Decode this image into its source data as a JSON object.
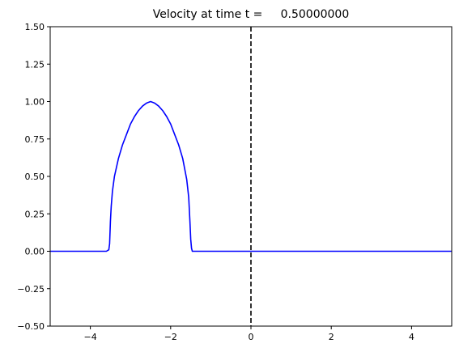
{
  "chart_data": {
    "type": "line",
    "title": "Velocity at time t =     0.50000000",
    "xlabel": "",
    "ylabel": "",
    "xlim": [
      -5,
      5
    ],
    "ylim": [
      -0.5,
      1.5
    ],
    "x_ticks": [
      -4,
      -2,
      0,
      2,
      4
    ],
    "x_tick_labels": [
      "−4",
      "−2",
      "0",
      "2",
      "4"
    ],
    "y_ticks": [
      -0.5,
      -0.25,
      0.0,
      0.25,
      0.5,
      0.75,
      1.0,
      1.25,
      1.5
    ],
    "y_tick_labels": [
      "−0.50",
      "−0.25",
      "0.00",
      "0.25",
      "0.50",
      "0.75",
      "1.00",
      "1.25",
      "1.50"
    ],
    "grid": false,
    "series": [
      {
        "color": "#0000ff",
        "x": [
          -5.0,
          -3.6,
          -3.54,
          -3.52,
          -3.5,
          -3.48,
          -3.45,
          -3.4,
          -3.3,
          -3.2,
          -3.1,
          -3.0,
          -2.9,
          -2.8,
          -2.7,
          -2.6,
          -2.5,
          -2.4,
          -2.3,
          -2.2,
          -2.1,
          -2.0,
          -1.9,
          -1.8,
          -1.7,
          -1.6,
          -1.55,
          -1.52,
          -1.5,
          -1.48,
          -1.46,
          -1.4,
          5.0
        ],
        "y": [
          0.0,
          0.0,
          0.01,
          0.05,
          0.2,
          0.3,
          0.4,
          0.5,
          0.62,
          0.71,
          0.78,
          0.85,
          0.9,
          0.94,
          0.97,
          0.99,
          1.0,
          0.99,
          0.97,
          0.94,
          0.9,
          0.85,
          0.78,
          0.71,
          0.62,
          0.48,
          0.36,
          0.2,
          0.08,
          0.02,
          0.0,
          0.0,
          0.0
        ]
      }
    ],
    "reference_lines": [
      {
        "orientation": "vertical",
        "x": 0,
        "color": "#000000",
        "style": "dashed"
      }
    ]
  }
}
